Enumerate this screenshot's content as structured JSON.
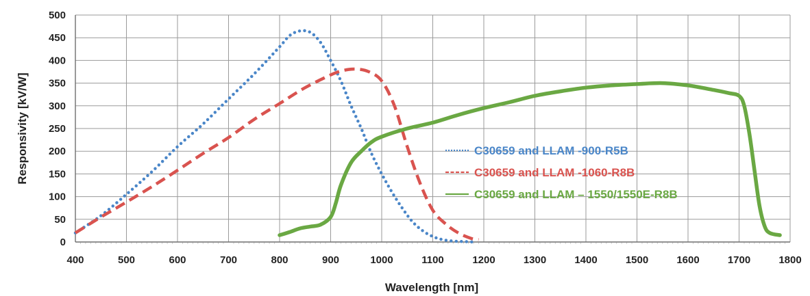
{
  "chart_data": {
    "type": "line",
    "xlabel": "Wavelength [nm]",
    "ylabel": "Responsivity [kV/W]",
    "xlim": [
      400,
      1800
    ],
    "ylim": [
      0,
      500
    ],
    "x_ticks": [
      "400",
      "500",
      "600",
      "700",
      "800",
      "900",
      "1000",
      "1100",
      "1200",
      "1300",
      "1400",
      "1500",
      "1600",
      "1700",
      "1800"
    ],
    "y_ticks": [
      "0",
      "50",
      "100",
      "150",
      "200",
      "250",
      "300",
      "350",
      "400",
      "450",
      "500"
    ],
    "grid": true,
    "legend_position": "center-right",
    "series": [
      {
        "name": "C30659 and LLAM -900-R5B",
        "color": "#4a86c8",
        "style": "dotted",
        "x": [
          400,
          450,
          500,
          550,
          600,
          650,
          700,
          750,
          800,
          820,
          840,
          860,
          880,
          900,
          920,
          940,
          960,
          980,
          1000,
          1020,
          1040,
          1060,
          1080,
          1100,
          1120,
          1140,
          1160,
          1180
        ],
        "y": [
          20,
          58,
          105,
          155,
          210,
          260,
          315,
          370,
          430,
          455,
          465,
          462,
          440,
          400,
          355,
          300,
          250,
          195,
          150,
          110,
          75,
          45,
          25,
          12,
          5,
          2,
          1,
          0
        ]
      },
      {
        "name": "C30659 and LLAM -1060-R8B",
        "color": "#d9534f",
        "style": "dashed",
        "x": [
          400,
          450,
          500,
          550,
          600,
          650,
          700,
          750,
          800,
          850,
          900,
          925,
          950,
          975,
          1000,
          1025,
          1050,
          1075,
          1100,
          1125,
          1150,
          1175,
          1190
        ],
        "y": [
          20,
          55,
          88,
          122,
          158,
          195,
          230,
          270,
          305,
          340,
          368,
          378,
          381,
          375,
          355,
          300,
          210,
          130,
          70,
          40,
          20,
          8,
          5
        ]
      },
      {
        "name": "C30659 and LLAM – 1550/1550E-R8B",
        "color": "#6aa843",
        "style": "solid",
        "x": [
          800,
          820,
          840,
          860,
          880,
          900,
          910,
          920,
          940,
          960,
          980,
          1000,
          1050,
          1100,
          1150,
          1200,
          1250,
          1300,
          1350,
          1400,
          1450,
          1500,
          1550,
          1600,
          1650,
          1680,
          1700,
          1710,
          1720,
          1730,
          1740,
          1750,
          1760,
          1780
        ],
        "y": [
          15,
          22,
          30,
          34,
          38,
          55,
          85,
          125,
          175,
          200,
          220,
          232,
          250,
          263,
          280,
          295,
          308,
          322,
          332,
          340,
          345,
          348,
          350,
          345,
          335,
          328,
          322,
          300,
          240,
          160,
          80,
          35,
          20,
          15
        ]
      }
    ]
  }
}
